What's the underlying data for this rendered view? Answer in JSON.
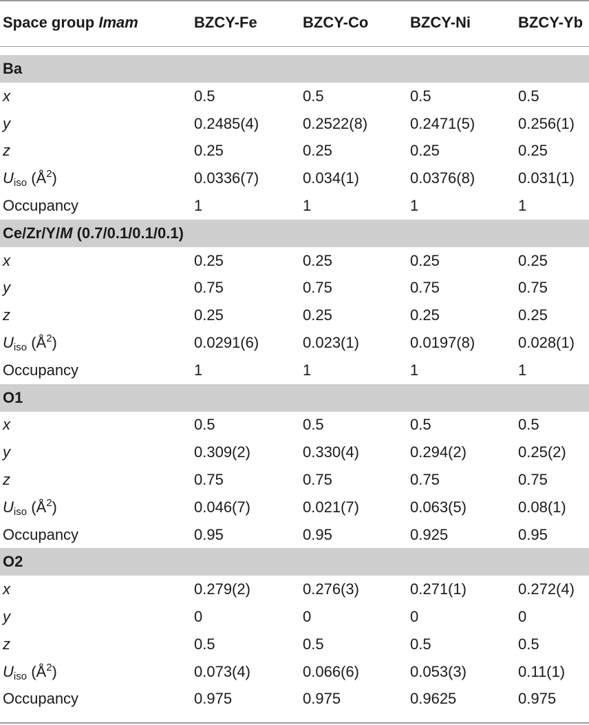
{
  "header": {
    "space_group_prefix": "Space group ",
    "space_group_name": "Imam",
    "columns": [
      "BZCY-Fe",
      "BZCY-Co",
      "BZCY-Ni",
      "BZCY-Yb"
    ]
  },
  "param_labels": {
    "x": "x",
    "y": "y",
    "z": "z",
    "U": "U",
    "iso": "iso",
    "unit_open": " (Å",
    "unit_exp": "2",
    "unit_close": ")",
    "occupancy": "Occupancy"
  },
  "sections": [
    {
      "title": "Ba",
      "rows": [
        {
          "param": "x",
          "values": [
            "0.5",
            "0.5",
            "0.5",
            "0.5"
          ]
        },
        {
          "param": "y",
          "values": [
            "0.2485(4)",
            "0.2522(8)",
            "0.2471(5)",
            "0.256(1)"
          ]
        },
        {
          "param": "z",
          "values": [
            "0.25",
            "0.25",
            "0.25",
            "0.25"
          ]
        },
        {
          "param": "uiso",
          "values": [
            "0.0336(7)",
            "0.034(1)",
            "0.0376(8)",
            "0.031(1)"
          ]
        },
        {
          "param": "occupancy",
          "values": [
            "1",
            "1",
            "1",
            "1"
          ]
        }
      ]
    },
    {
      "title": "Ce/Zr/Y/",
      "title_italic": "M",
      "title_suffix": " (0.7/0.1/0.1/0.1)",
      "rows": [
        {
          "param": "x",
          "values": [
            "0.25",
            "0.25",
            "0.25",
            "0.25"
          ]
        },
        {
          "param": "y",
          "values": [
            "0.75",
            "0.75",
            "0.75",
            "0.75"
          ]
        },
        {
          "param": "z",
          "values": [
            "0.25",
            "0.25",
            "0.25",
            "0.25"
          ]
        },
        {
          "param": "uiso",
          "values": [
            "0.0291(6)",
            "0.023(1)",
            "0.0197(8)",
            "0.028(1)"
          ]
        },
        {
          "param": "occupancy",
          "values": [
            "1",
            "1",
            "1",
            "1"
          ]
        }
      ]
    },
    {
      "title": "O1",
      "rows": [
        {
          "param": "x",
          "values": [
            "0.5",
            "0.5",
            "0.5",
            "0.5"
          ]
        },
        {
          "param": "y",
          "values": [
            "0.309(2)",
            "0.330(4)",
            "0.294(2)",
            "0.25(2)"
          ]
        },
        {
          "param": "z",
          "values": [
            "0.75",
            "0.75",
            "0.75",
            "0.75"
          ]
        },
        {
          "param": "uiso",
          "values": [
            "0.046(7)",
            "0.021(7)",
            "0.063(5)",
            "0.08(1)"
          ]
        },
        {
          "param": "occupancy",
          "values": [
            "0.95",
            "0.95",
            "0.925",
            "0.95"
          ]
        }
      ]
    },
    {
      "title": "O2",
      "rows": [
        {
          "param": "x",
          "values": [
            "0.279(2)",
            "0.276(3)",
            "0.271(1)",
            "0.272(4)"
          ]
        },
        {
          "param": "y",
          "values": [
            "0",
            "0",
            "0",
            "0"
          ]
        },
        {
          "param": "z",
          "values": [
            "0.5",
            "0.5",
            "0.5",
            "0.5"
          ]
        },
        {
          "param": "uiso",
          "values": [
            "0.073(4)",
            "0.066(6)",
            "0.053(3)",
            "0.11(1)"
          ]
        },
        {
          "param": "occupancy",
          "values": [
            "0.975",
            "0.975",
            "0.9625",
            "0.975"
          ]
        }
      ]
    }
  ]
}
